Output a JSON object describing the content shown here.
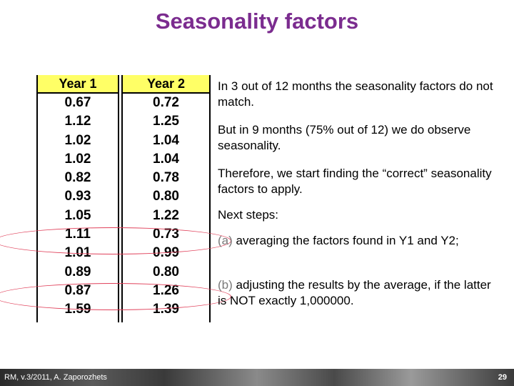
{
  "title": "Seasonality factors",
  "table": {
    "col1_header": "Year 1",
    "col2_header": "Year 2",
    "year1": [
      "0.67",
      "1.12",
      "1.02",
      "1.02",
      "0.82",
      "0.93",
      "1.05",
      "1.11",
      "1.01",
      "0.89",
      "0.87",
      "1.59"
    ],
    "year2": [
      "0.72",
      "1.25",
      "1.04",
      "1.04",
      "0.78",
      "0.80",
      "1.22",
      "0.73",
      "0.99",
      "0.80",
      "1.26",
      "1.39"
    ]
  },
  "text": {
    "p1": "In 3 out of 12 months the seasonality factors do not match.",
    "p2": "But in 9 months (75% out of 12) we do observe seasonality.",
    "p3": "Therefore, we start finding the “correct” seasonality factors to apply.",
    "p4": "Next steps:",
    "a_letter": "(a)",
    "a_text": "averaging the factors found in Y1 and Y2;",
    "b_letter": "(b)",
    "b_text": "adjusting the results by the average, if the latter is NOT exactly 1,000000."
  },
  "footer": {
    "left": "RM, v.3/2011, A. Zaporozhets",
    "page": "29"
  },
  "colors": {
    "title": "#7b2c8f",
    "header_fill": "#ffff66",
    "ellipse": "#e0405a"
  }
}
